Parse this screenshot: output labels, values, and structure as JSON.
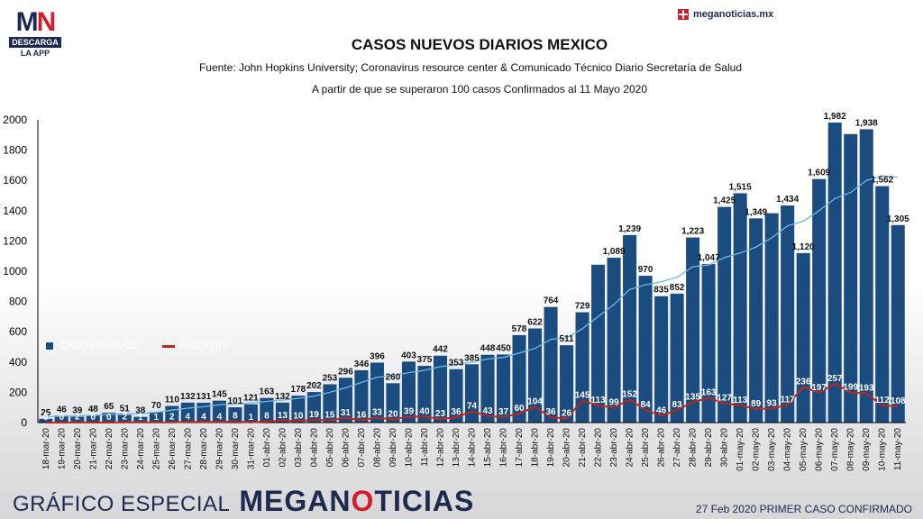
{
  "header": {
    "logo_mark_left": "M",
    "logo_mark_right": "N",
    "logo_box": "DESCARGA",
    "logo_sub": "LA APP",
    "site": "meganoticias.mx"
  },
  "footer": {
    "special": "GRÁFICO ESPECIAL",
    "brand_a": "MEGAN",
    "brand_b": "O",
    "brand_c": "TICIAS",
    "note": "27 Feb 2020 PRIMER CASO CONFIRMADO"
  },
  "colors": {
    "bar": "#1b4c80",
    "deaths_line": "#c0261b",
    "trend_line": "#6fb9e8",
    "axis": "#000000"
  },
  "chart_data": {
    "type": "bar",
    "title": "CASOS NUEVOS DIARIOS MEXICO",
    "subtitle": "Fuente: John Hopkins University; Coronavirus resource center & Comunicado Técnico Diario Secretaría de Salud",
    "subtitle2": "A partir de que se superaron 100 casos Confirmados al 11 Mayo 2020",
    "ylim": [
      0,
      2000
    ],
    "yticks": [
      0,
      200,
      400,
      600,
      800,
      1000,
      1200,
      1400,
      1600,
      1800,
      2000
    ],
    "categories": [
      "18-mar-20",
      "19-mar-20",
      "20-mar-20",
      "21-mar-20",
      "22-mar-20",
      "23-mar-20",
      "24-mar-20",
      "25-mar-20",
      "26-mar-20",
      "27-mar-20",
      "28-mar-20",
      "29-mar-20",
      "30-mar-20",
      "31-mar-20",
      "01-abr-20",
      "02-abr-20",
      "03-abr-20",
      "04-abr-20",
      "05-abr-20",
      "06-abr-20",
      "07-abr-20",
      "08-abr-20",
      "09-abr-20",
      "10-abr-20",
      "11-abr-20",
      "12-abr-20",
      "13-abr-20",
      "14-abr-20",
      "15-abr-20",
      "16-abr-20",
      "17-abr-20",
      "18-abr-20",
      "19-abr-20",
      "20-abr-20",
      "21-abr-20",
      "22-abr-20",
      "23-abr-20",
      "24-abr-20",
      "25-abr-20",
      "26-abr-20",
      "27-abr-20",
      "28-abr-20",
      "29-abr-20",
      "30-abr-20",
      "01-may-20",
      "02-may-20",
      "03-may-20",
      "04-may-20",
      "05-may-20",
      "06-may-20",
      "07-may-20",
      "08-may-20",
      "09-may-20",
      "10-may-20",
      "11-may-20"
    ],
    "series": [
      {
        "name": "CASOS NUEVOS",
        "values": [
          25,
          46,
          39,
          48,
          65,
          51,
          38,
          70,
          110,
          132,
          131,
          145,
          101,
          121,
          163,
          132,
          178,
          202,
          253,
          296,
          346,
          396,
          260,
          403,
          375,
          442,
          353,
          385,
          448,
          450,
          578,
          622,
          764,
          511,
          729,
          1043,
          1089,
          1239,
          970,
          835,
          852,
          1223,
          1047,
          1425,
          1515,
          1349,
          1383,
          1434,
          1120,
          1609,
          1982,
          1906,
          1938,
          1562,
          1305
        ],
        "labels": [
          "25",
          "46",
          "39",
          "48",
          "65",
          "51",
          "38",
          "70",
          "110",
          "132",
          "131",
          "145",
          "101",
          "121",
          "163",
          "132",
          "178",
          "202",
          "253",
          "296",
          "346",
          "396",
          "260",
          "403",
          "375",
          "442",
          "353",
          "385",
          "448",
          "450",
          "578",
          "622",
          "764",
          "511",
          "729",
          "",
          "1,089",
          "1,239",
          "970",
          "835",
          "852",
          "1,223",
          "1,047",
          "1,425",
          "1,515",
          "1,349",
          "",
          "1,434",
          "1,120",
          "1,609",
          "1,982",
          "",
          "1,938",
          "1,562",
          "1,305"
        ]
      },
      {
        "name": "MUERTES",
        "values": [
          0,
          0,
          2,
          0,
          0,
          2,
          1,
          1,
          2,
          4,
          4,
          4,
          8,
          1,
          8,
          13,
          10,
          19,
          15,
          31,
          16,
          33,
          20,
          39,
          40,
          23,
          36,
          74,
          43,
          37,
          60,
          104,
          36,
          26,
          145,
          113,
          99,
          152,
          84,
          46,
          83,
          135,
          163,
          127,
          113,
          89,
          93,
          117,
          236,
          197,
          257,
          199,
          193,
          112,
          108
        ]
      },
      {
        "name": "",
        "values": [
          38,
          42,
          45,
          47,
          55,
          58,
          60,
          68,
          82,
          95,
          105,
          118,
          122,
          130,
          140,
          148,
          160,
          175,
          200,
          230,
          265,
          300,
          310,
          330,
          345,
          370,
          380,
          400,
          420,
          430,
          460,
          490,
          550,
          560,
          620,
          700,
          780,
          880,
          910,
          930,
          960,
          1030,
          1040,
          1090,
          1120,
          1160,
          1220,
          1300,
          1330,
          1400,
          1480,
          1520,
          1600,
          1630,
          1620
        ]
      }
    ]
  }
}
